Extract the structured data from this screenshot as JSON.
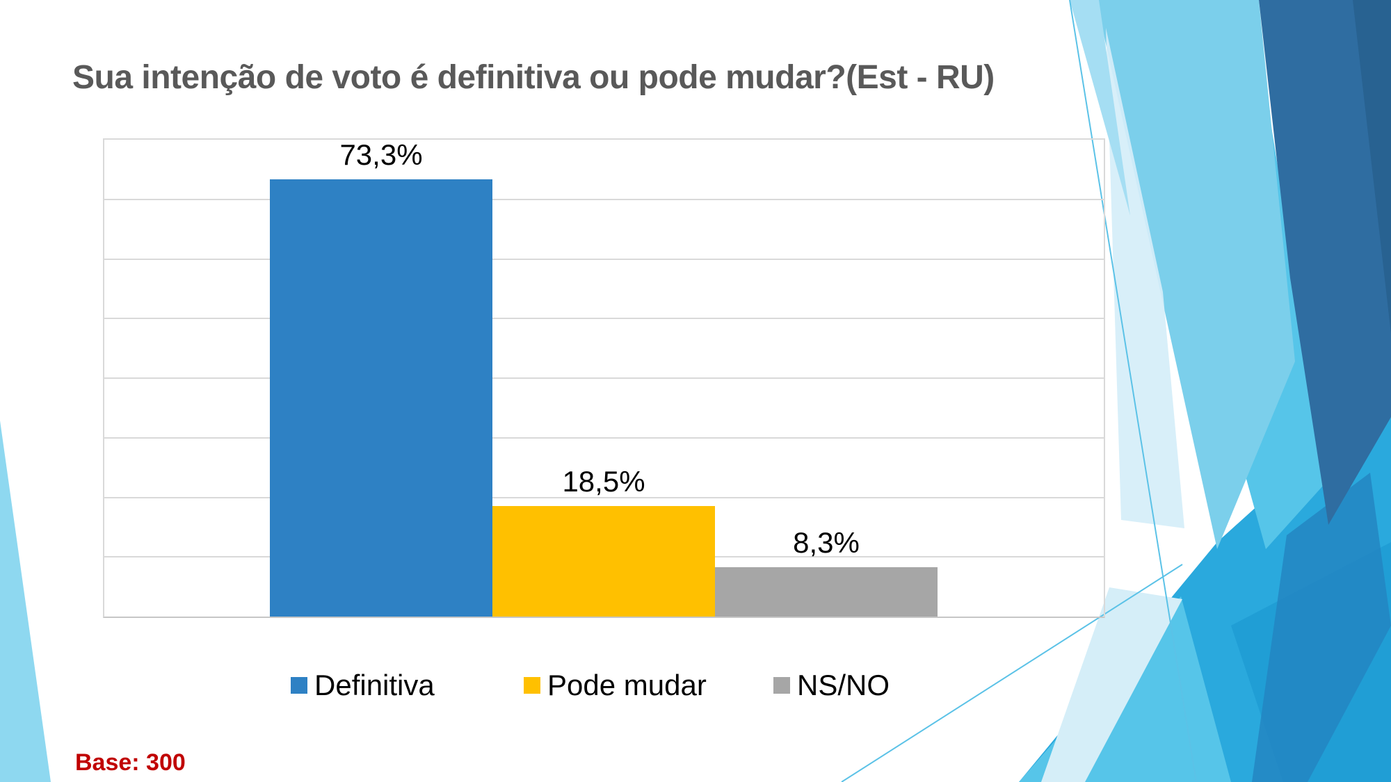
{
  "slide": {
    "title": "Sua intenção de voto é definitiva ou pode mudar?(Est - RU)",
    "base_note": "Base: 300"
  },
  "chart_data": {
    "type": "bar",
    "title": "Sua intenção de voto é definitiva ou pode mudar?(Est - RU)",
    "xlabel": "",
    "ylabel": "",
    "categories": [
      ""
    ],
    "series": [
      {
        "name": "Definitiva",
        "value": 73.3,
        "label": "73,3%",
        "color": "#2E81C4"
      },
      {
        "name": "Pode mudar",
        "value": 18.5,
        "label": "18,5%",
        "color": "#FFC000"
      },
      {
        "name": "NS/NO",
        "value": 8.3,
        "label": "8,3%",
        "color": "#A6A6A6"
      }
    ],
    "ylim": [
      0,
      80
    ],
    "gridline_step": 10,
    "grid": true,
    "y_axis_labels_visible": false,
    "legend_position": "bottom",
    "value_format": "percent-comma-decimal"
  },
  "theme": {
    "title_color": "#595959",
    "base_note_color": "#C00000",
    "gridline_color": "#D9D9D9",
    "plot_border_color": "#D9D9D9",
    "axis_line_color": "#C6C6C6",
    "data_label_color": "#000000",
    "legend_text_color": "#000000",
    "decor_palette": {
      "pale": "#D5EEF8",
      "pale2": "#A5DEF3",
      "light": "#7BCFEB",
      "medium": "#56C5E9",
      "cyan": "#2AA9DD",
      "cyan_deep": "#1F9CD4",
      "mid_blue": "#2383C0",
      "navy": "#2F6DA1",
      "navy_dark": "#28608F",
      "corner_light_blue": "#8ED8F0",
      "thin_line": "#5BC2E7"
    }
  }
}
